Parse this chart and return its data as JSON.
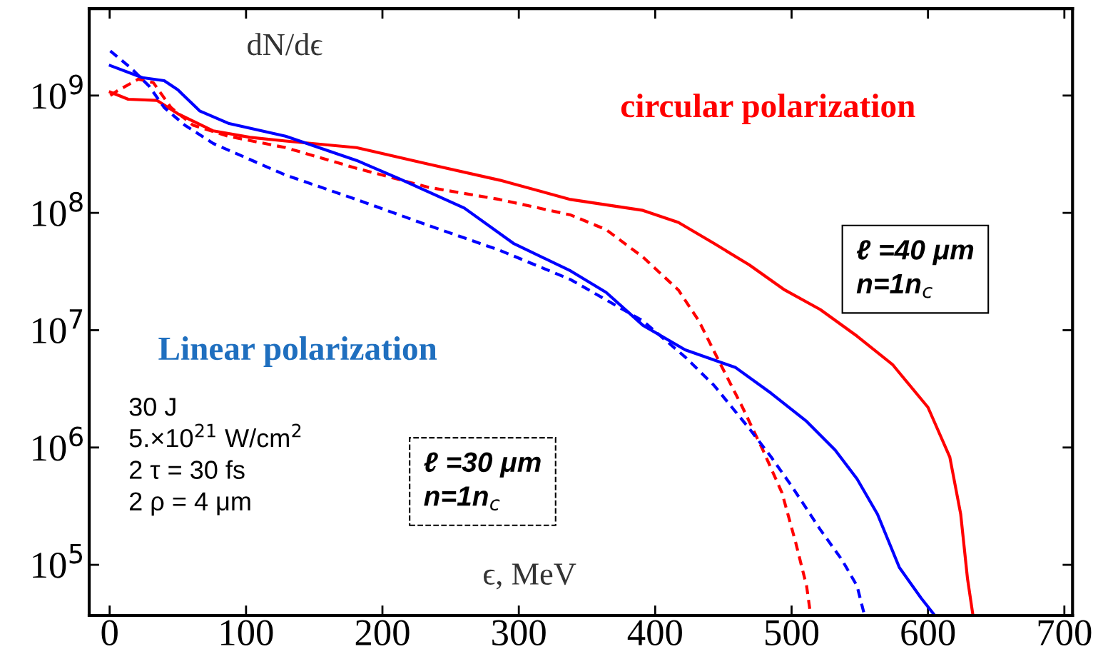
{
  "chart_data": {
    "type": "line",
    "xlabel": "ϵ, MeV",
    "ylabel": "dN/dϵ",
    "log": "y",
    "grid": false,
    "legend": false,
    "xlim": [
      -15,
      706
    ],
    "ylim": [
      37000,
      5500000000
    ],
    "xticks": [
      0,
      100,
      200,
      300,
      400,
      500,
      600,
      700
    ],
    "yticks": [
      {
        "value": 100000,
        "label": "10$^{5}$"
      },
      {
        "value": 1000000,
        "label": "10$^{6}$"
      },
      {
        "value": 10000000,
        "label": "10$^{7}$"
      },
      {
        "value": 100000000,
        "label": "10$^{8}$"
      },
      {
        "value": 1000000000,
        "label": "10$^{9}$"
      }
    ],
    "series": [
      {
        "color": "#ff0000",
        "line_style": "solid",
        "x": [
          0.5,
          13.6,
          34.6,
          50,
          76,
          103,
          129,
          181,
          234,
          286,
          338,
          391,
          417,
          443,
          469,
          495,
          521,
          548,
          574,
          600,
          616,
          624,
          629,
          633
        ],
        "values": [
          1070000000,
          930000000,
          910000000,
          700000000,
          500000000,
          440000000,
          410000000,
          360000000,
          260000000,
          190000000,
          130000000,
          105000000,
          83000000,
          55000000,
          36000000,
          22000000,
          15000000,
          8900000,
          5100000,
          2200000,
          830000,
          270000,
          76000,
          37000
        ]
      },
      {
        "color": "#ff0000",
        "line_style": "dashed",
        "x": [
          0.5,
          5.8,
          21,
          32,
          45,
          61,
          87,
          129,
          181,
          234,
          286,
          338,
          364,
          391,
          417,
          432,
          448,
          464,
          479,
          493,
          503,
          511,
          514
        ],
        "values": [
          1000000000,
          1100000000,
          1380000000,
          1290000000,
          790000000,
          560000000,
          450000000,
          360000000,
          240000000,
          165000000,
          130000000,
          96000000,
          72000000,
          42000000,
          22000000,
          12000000,
          5100000,
          2200000,
          950000,
          410000,
          155000,
          66000,
          37000
        ]
      },
      {
        "color": "#0000ff",
        "line_style": "solid",
        "x": [
          0.5,
          24,
          40,
          50,
          66,
          87,
          129,
          181,
          213,
          260,
          296,
          338,
          364,
          391,
          422,
          459,
          485,
          511,
          532,
          548,
          563,
          579,
          595,
          605
        ],
        "values": [
          1800000000,
          1420000000,
          1340000000,
          1120000000,
          740000000,
          580000000,
          450000000,
          280000000,
          194000000,
          110000000,
          55000000,
          32000000,
          21000000,
          11000000,
          6800000,
          4800000,
          2900000,
          1670000,
          950000,
          540000,
          270000,
          95000,
          52000,
          37000
        ]
      },
      {
        "color": "#0000ff",
        "line_style": "dashed",
        "x": [
          0.5,
          16,
          29,
          40,
          55,
          76,
          129,
          181,
          234,
          286,
          338,
          391,
          422,
          443,
          469,
          485,
          500,
          521,
          537,
          548,
          553
        ],
        "values": [
          2400000000,
          1700000000,
          1200000000,
          790000000,
          560000000,
          390000000,
          210000000,
          130000000,
          78000000,
          48000000,
          27000000,
          12000000,
          5900000,
          3400000,
          1450000,
          830000,
          470000,
          200000,
          110000,
          66000,
          39000
        ]
      }
    ],
    "annotations": [
      "circular polarization",
      "Linear polarization",
      "ℓ =40 μm\nn=1n$_{c}$",
      "ℓ =30 μm\nn=1n$_{c}$",
      "30 J\n5.×10$^{21}$ W/cm$^{2}$\n2 τ = 30 fs\n2 ρ = 4 μm"
    ]
  }
}
